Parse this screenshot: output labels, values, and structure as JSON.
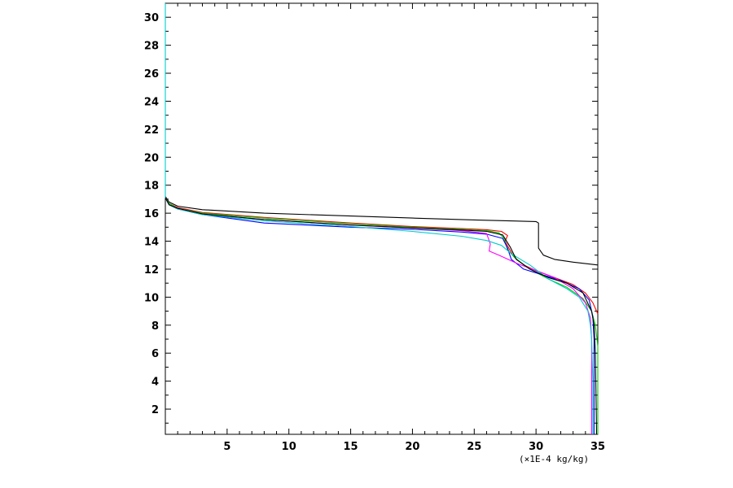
{
  "chart_data": {
    "type": "line",
    "title": "",
    "xlabel": "",
    "ylabel": "",
    "x_unit_label": "(×1E-4 kg/kg)",
    "xlim": [
      0,
      35
    ],
    "ylim": [
      0.2,
      31
    ],
    "x_ticks": [
      5,
      10,
      15,
      20,
      25,
      30,
      35
    ],
    "y_ticks": [
      2,
      4,
      6,
      8,
      10,
      12,
      14,
      16,
      18,
      20,
      22,
      24,
      26,
      28,
      30
    ],
    "grid": false,
    "legend": "none",
    "series": [
      {
        "color": "#000000",
        "points": [
          [
            0,
            17.2
          ],
          [
            0.3,
            16.8
          ],
          [
            1,
            16.5
          ],
          [
            3,
            16.25
          ],
          [
            8,
            16.0
          ],
          [
            15,
            15.8
          ],
          [
            20,
            15.65
          ],
          [
            25,
            15.52
          ],
          [
            30,
            15.4
          ],
          [
            30.2,
            15.3
          ],
          [
            30.2,
            13.5
          ],
          [
            30.6,
            13.0
          ],
          [
            31.5,
            12.7
          ],
          [
            33,
            12.5
          ],
          [
            35,
            12.3
          ]
        ]
      },
      {
        "color": "#ff0000",
        "points": [
          [
            0,
            17.1
          ],
          [
            0.3,
            16.7
          ],
          [
            1,
            16.4
          ],
          [
            3,
            16.05
          ],
          [
            8,
            15.7
          ],
          [
            15,
            15.3
          ],
          [
            20,
            15.05
          ],
          [
            24,
            14.9
          ],
          [
            26,
            14.82
          ],
          [
            27.2,
            14.7
          ],
          [
            27.7,
            14.4
          ],
          [
            27.5,
            14.0
          ],
          [
            27.8,
            13.5
          ],
          [
            28.2,
            12.9
          ],
          [
            29,
            12.3
          ],
          [
            30,
            11.9
          ],
          [
            31.5,
            11.4
          ],
          [
            33,
            10.9
          ],
          [
            34,
            10.3
          ],
          [
            34.6,
            9.6
          ],
          [
            35,
            8.8
          ]
        ]
      },
      {
        "color": "#00cc00",
        "points": [
          [
            0,
            17.1
          ],
          [
            0.3,
            16.7
          ],
          [
            1,
            16.35
          ],
          [
            3,
            16.0
          ],
          [
            8,
            15.65
          ],
          [
            15,
            15.25
          ],
          [
            20,
            15.0
          ],
          [
            24,
            14.85
          ],
          [
            26,
            14.75
          ],
          [
            27,
            14.6
          ],
          [
            27.4,
            14.2
          ],
          [
            27.7,
            13.4
          ],
          [
            28.3,
            12.8
          ],
          [
            29.5,
            12.0
          ],
          [
            31,
            11.3
          ],
          [
            32.5,
            10.7
          ],
          [
            33.8,
            9.9
          ],
          [
            34.5,
            9.0
          ],
          [
            34.8,
            8.0
          ],
          [
            35,
            6.5
          ],
          [
            35,
            0.2
          ]
        ]
      },
      {
        "color": "#0000ff",
        "points": [
          [
            0,
            17.1
          ],
          [
            0.3,
            16.6
          ],
          [
            1,
            16.3
          ],
          [
            3,
            15.9
          ],
          [
            8,
            15.3
          ],
          [
            15,
            15.0
          ],
          [
            20,
            14.85
          ],
          [
            24,
            14.65
          ],
          [
            26,
            14.5
          ],
          [
            27.3,
            14.2
          ],
          [
            27.7,
            13.5
          ],
          [
            28,
            12.7
          ],
          [
            29,
            12.0
          ],
          [
            30.5,
            11.6
          ],
          [
            32,
            11.2
          ],
          [
            33.5,
            10.6
          ],
          [
            34.3,
            9.8
          ],
          [
            34.6,
            8.6
          ],
          [
            34.7,
            7.0
          ],
          [
            34.7,
            0.2
          ]
        ]
      },
      {
        "color": "#ff00ff",
        "points": [
          [
            0,
            17.1
          ],
          [
            0.3,
            16.6
          ],
          [
            1,
            16.35
          ],
          [
            3,
            15.95
          ],
          [
            8,
            15.55
          ],
          [
            15,
            15.15
          ],
          [
            20,
            14.95
          ],
          [
            24,
            14.75
          ],
          [
            26,
            14.55
          ],
          [
            26.3,
            13.8
          ],
          [
            26.2,
            13.3
          ],
          [
            27,
            13.0
          ],
          [
            28.5,
            12.4
          ],
          [
            30,
            11.9
          ],
          [
            31.5,
            11.4
          ],
          [
            33,
            10.6
          ],
          [
            34,
            9.6
          ],
          [
            34.4,
            8.5
          ],
          [
            34.5,
            7.0
          ],
          [
            34.5,
            0.2
          ]
        ]
      },
      {
        "color": "#00cccc",
        "points": [
          [
            0,
            31
          ],
          [
            0,
            17.1
          ],
          [
            0.3,
            16.6
          ],
          [
            1,
            16.3
          ],
          [
            3,
            15.9
          ],
          [
            8,
            15.45
          ],
          [
            15,
            15.05
          ],
          [
            20,
            14.7
          ],
          [
            24,
            14.35
          ],
          [
            26,
            14.05
          ],
          [
            27.2,
            13.7
          ],
          [
            28,
            13.1
          ],
          [
            29.5,
            12.3
          ],
          [
            31,
            11.3
          ],
          [
            32.5,
            10.6
          ],
          [
            33.5,
            10.0
          ],
          [
            34.2,
            9.0
          ],
          [
            34.4,
            8.0
          ],
          [
            34.5,
            7.0
          ],
          [
            34.6,
            4.0
          ],
          [
            34.6,
            0.2
          ]
        ]
      },
      {
        "color": "#000000",
        "points": [
          [
            0,
            17.1
          ],
          [
            0.3,
            16.6
          ],
          [
            1,
            16.35
          ],
          [
            3,
            15.95
          ],
          [
            8,
            15.55
          ],
          [
            15,
            15.15
          ],
          [
            20,
            14.95
          ],
          [
            24,
            14.8
          ],
          [
            26,
            14.7
          ],
          [
            27.3,
            14.45
          ],
          [
            27.9,
            13.6
          ],
          [
            28.4,
            12.7
          ],
          [
            29.5,
            12.0
          ],
          [
            31,
            11.4
          ],
          [
            32.5,
            11.0
          ],
          [
            33.8,
            10.3
          ],
          [
            34.5,
            9.0
          ],
          [
            34.7,
            8.0
          ],
          [
            34.8,
            6.0
          ],
          [
            34.9,
            0.2
          ]
        ]
      }
    ]
  }
}
